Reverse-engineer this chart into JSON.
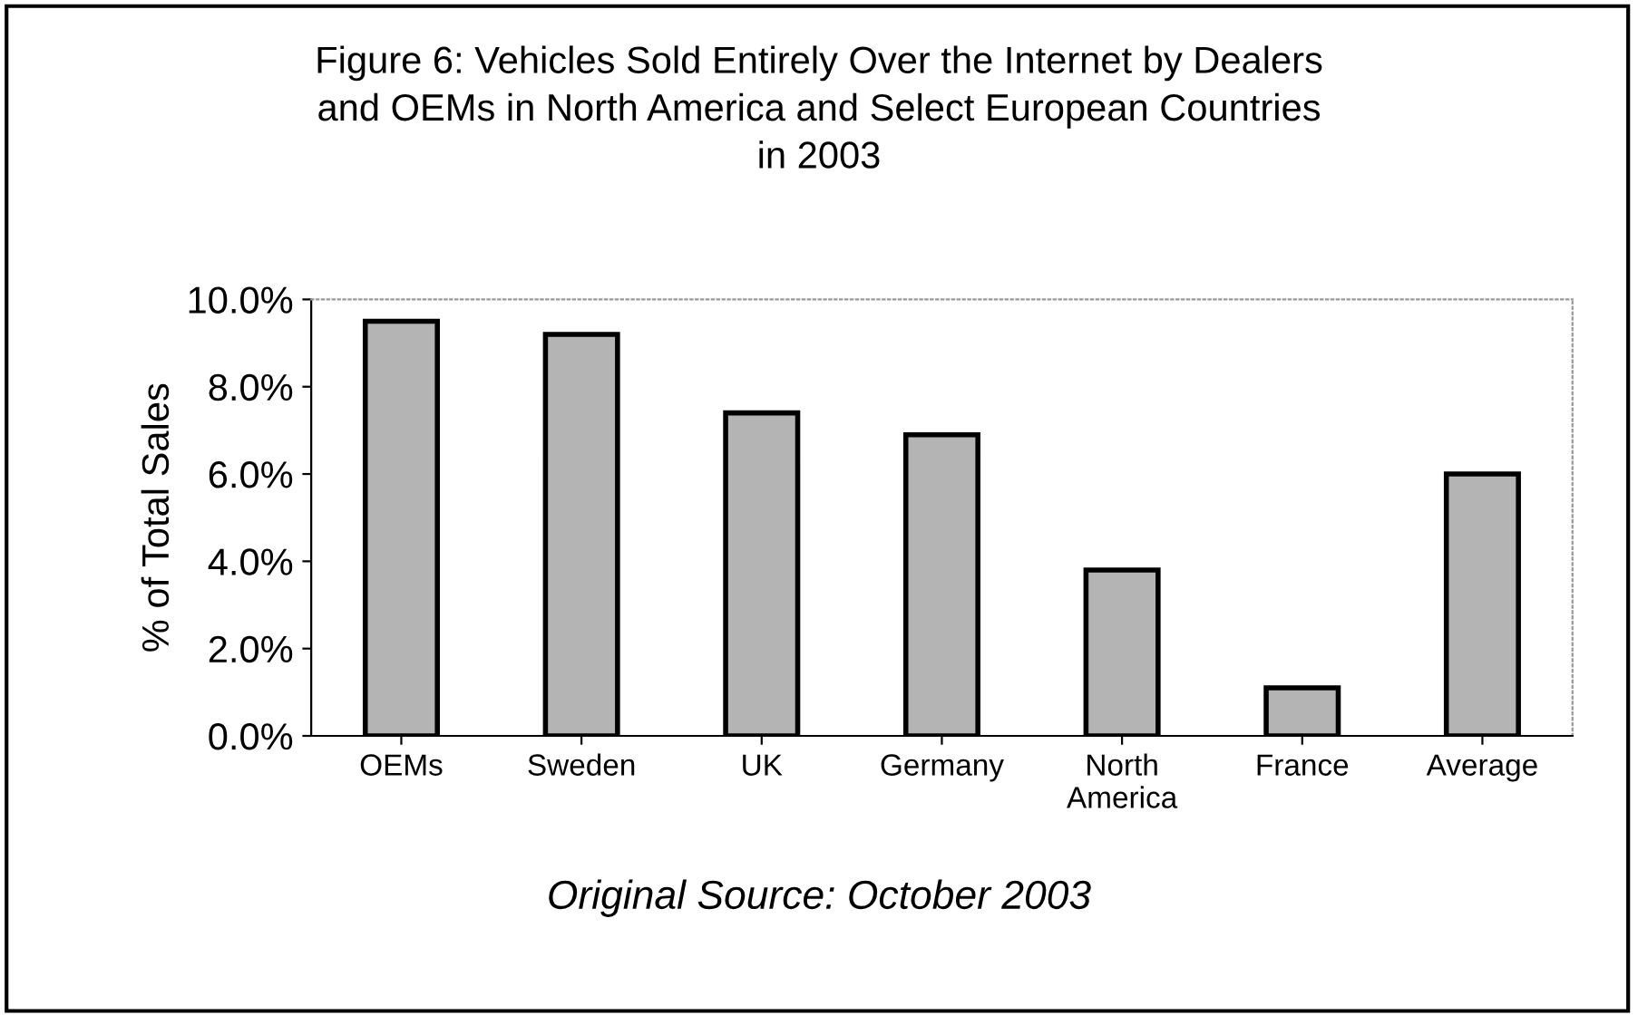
{
  "chart_data": {
    "type": "bar",
    "title": "Figure 6: Vehicles Sold Entirely Over the Internet by Dealers\nand OEMs in North America and Select European Countries\nin 2003",
    "ylabel": "% of Total Sales",
    "categories": [
      "OEMs",
      "Sweden",
      "UK",
      "Germany",
      "North\nAmerica",
      "France",
      "Average"
    ],
    "values": [
      9.5,
      9.2,
      7.4,
      6.9,
      3.8,
      1.1,
      6.0
    ],
    "color": "#b4b4b4",
    "ylim": [
      0,
      10
    ],
    "yticks": [
      {
        "value": 0,
        "label": "0.0%"
      },
      {
        "value": 2,
        "label": "2.0%"
      },
      {
        "value": 4,
        "label": "4.0%"
      },
      {
        "value": 6,
        "label": "6.0%"
      },
      {
        "value": 8,
        "label": "8.0%"
      },
      {
        "value": 10,
        "label": "10.0%"
      }
    ],
    "grid": false,
    "annotations": [
      "Original Source: October 2003"
    ]
  }
}
